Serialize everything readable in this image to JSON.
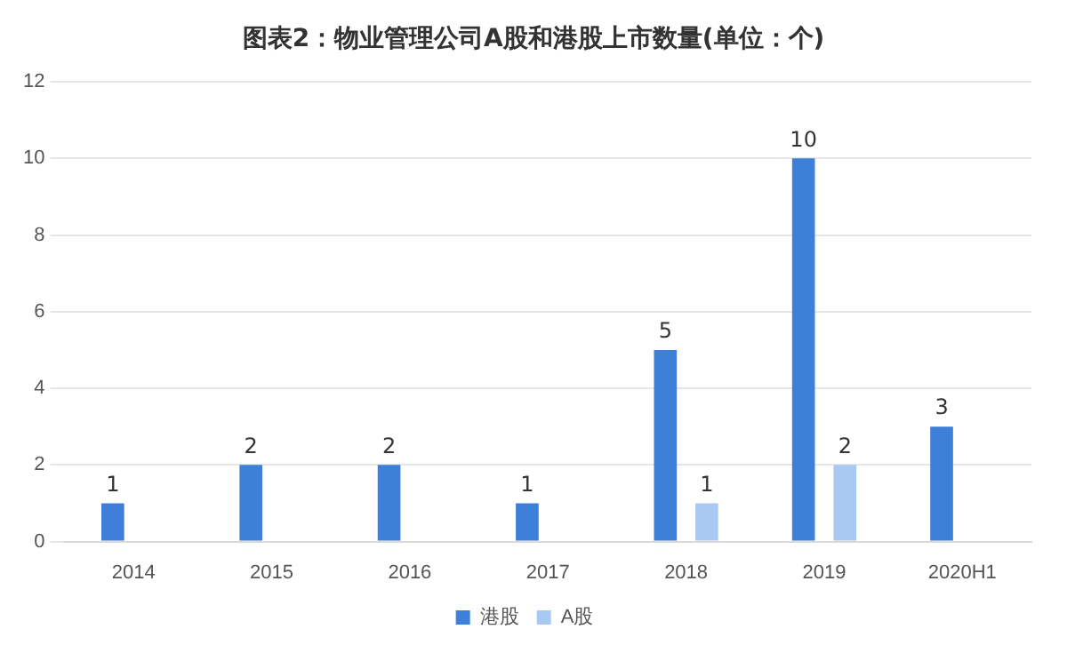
{
  "chart_data": {
    "type": "bar",
    "title": "图表2：物业管理公司A股和港股上市数量(单位：个)",
    "categories": [
      "2014",
      "2015",
      "2016",
      "2017",
      "2018",
      "2019",
      "2020H1"
    ],
    "series": [
      {
        "name": "港股",
        "color": "#3d7fd9",
        "values": [
          1,
          2,
          2,
          1,
          5,
          10,
          3
        ]
      },
      {
        "name": "A股",
        "color": "#a9c9f2",
        "values": [
          null,
          null,
          null,
          null,
          1,
          2,
          null
        ]
      }
    ],
    "ylim": [
      0,
      12
    ],
    "yticks": [
      0,
      2,
      4,
      6,
      8,
      10,
      12
    ],
    "grid": "y",
    "legend": "bottom",
    "data_labels": true
  }
}
